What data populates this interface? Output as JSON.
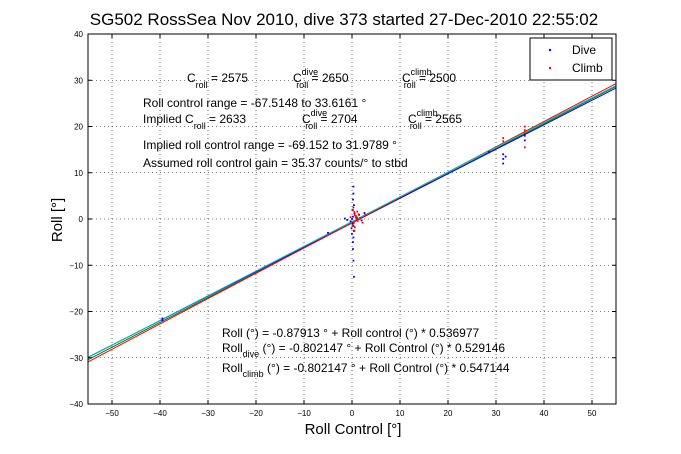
{
  "chart_data": {
    "type": "scatter",
    "title": "SG502 RossSea Nov 2010, dive 373 started 27-Dec-2010 22:55:02",
    "xlabel": "Roll Control [°]",
    "ylabel": "Roll [°]",
    "xlim": [
      -55,
      55
    ],
    "ylim": [
      -40,
      40
    ],
    "xticks": [
      -50,
      -40,
      -30,
      -20,
      -10,
      0,
      10,
      20,
      30,
      40,
      50
    ],
    "yticks": [
      -40,
      -30,
      -20,
      -10,
      0,
      10,
      20,
      30,
      40
    ],
    "grid": true,
    "legend": {
      "placement": "top-right"
    },
    "series": [
      {
        "name": "Dive",
        "color": "#0000ff",
        "points": [
          [
            -39.5,
            -21.5
          ],
          [
            -39.5,
            -21.9
          ],
          [
            -5.0,
            -3.0
          ],
          [
            0.3,
            7.0
          ],
          [
            0.3,
            5.5
          ],
          [
            0.2,
            4.2
          ],
          [
            0.4,
            3.0
          ],
          [
            0.1,
            2.0
          ],
          [
            0.5,
            1.2
          ],
          [
            0.2,
            0.5
          ],
          [
            0.0,
            0.0
          ],
          [
            -0.3,
            -0.5
          ],
          [
            0.2,
            -1.0
          ],
          [
            0.3,
            -1.5
          ],
          [
            -0.1,
            -2.0
          ],
          [
            0.4,
            -2.6
          ],
          [
            0.0,
            -3.2
          ],
          [
            0.3,
            -4.0
          ],
          [
            0.2,
            -5.0
          ],
          [
            0.2,
            -6.5
          ],
          [
            0.3,
            -9.0
          ],
          [
            0.4,
            -12.5
          ],
          [
            1.0,
            0.3
          ],
          [
            1.5,
            0.9
          ],
          [
            2.0,
            -0.3
          ],
          [
            2.6,
            1.3
          ],
          [
            -1.0,
            -0.2
          ],
          [
            -1.5,
            0.1
          ],
          [
            28.5,
            14.5
          ],
          [
            31.5,
            14.0
          ],
          [
            31.5,
            13.0
          ],
          [
            31.5,
            12.0
          ],
          [
            32.0,
            13.5
          ],
          [
            36.0,
            18.0
          ],
          [
            36.0,
            17.0
          ]
        ]
      },
      {
        "name": "Climb",
        "color": "#ff0000",
        "points": [
          [
            0.3,
            2.5
          ],
          [
            0.5,
            1.5
          ],
          [
            0.6,
            0.8
          ],
          [
            0.8,
            0.3
          ],
          [
            1.0,
            0.0
          ],
          [
            1.2,
            -0.4
          ],
          [
            0.4,
            -0.8
          ],
          [
            0.1,
            -1.3
          ],
          [
            0.6,
            -1.8
          ],
          [
            0.9,
            0.6
          ],
          [
            1.4,
            1.0
          ],
          [
            0.2,
            1.9
          ],
          [
            -0.3,
            0.4
          ],
          [
            1.7,
            0.2
          ],
          [
            2.2,
            -0.8
          ],
          [
            2.8,
            0.9
          ],
          [
            0.5,
            -2.5
          ],
          [
            1.1,
            1.6
          ],
          [
            31.5,
            17.5
          ],
          [
            31.5,
            16.8
          ],
          [
            36.0,
            20.0
          ],
          [
            36.0,
            19.2
          ],
          [
            36.0,
            18.5
          ],
          [
            36.0,
            15.5
          ]
        ]
      }
    ],
    "fit_lines": [
      {
        "intercept": -0.87913,
        "slope": 0.536977,
        "color": "#008000"
      },
      {
        "intercept": -0.802147,
        "slope": 0.529146,
        "color": "#0000ff"
      },
      {
        "intercept": -0.802147,
        "slope": 0.547144,
        "color": "#ff0000"
      },
      {
        "intercept": -0.55,
        "slope": 0.5345,
        "color": "#00bfbf"
      }
    ]
  },
  "annotations": {
    "c": "C",
    "roll": "roll",
    "dive": "dive",
    "climb": "climb",
    "croll_val": " = 2575",
    "croll_dive_val": " = 2650",
    "croll_climb_val": " = 2500",
    "roll_control_range": "Roll control range = -67.5148 to 33.6161 °",
    "implied_prefix": "Implied C",
    "implied_croll_val": " = 2633",
    "implied_dive_val": " = 2704",
    "implied_climb_val": " = 2565",
    "implied_range": "Implied roll control range = -69.152 to 31.9789 °",
    "assumed_gain": "Assumed roll control gain = 35.37 counts/° to stbd",
    "eq1": "Roll (°) = -0.87913 ° + Roll control (°) * 0.536977",
    "eq2_a": "Roll",
    "eq2_b": " (°) = -0.802147 ° + Roll Control (°) * 0.529146",
    "eq3_a": "Roll",
    "eq3_b": " (°) = -0.802147 ° + Roll Control (°) * 0.547144"
  }
}
